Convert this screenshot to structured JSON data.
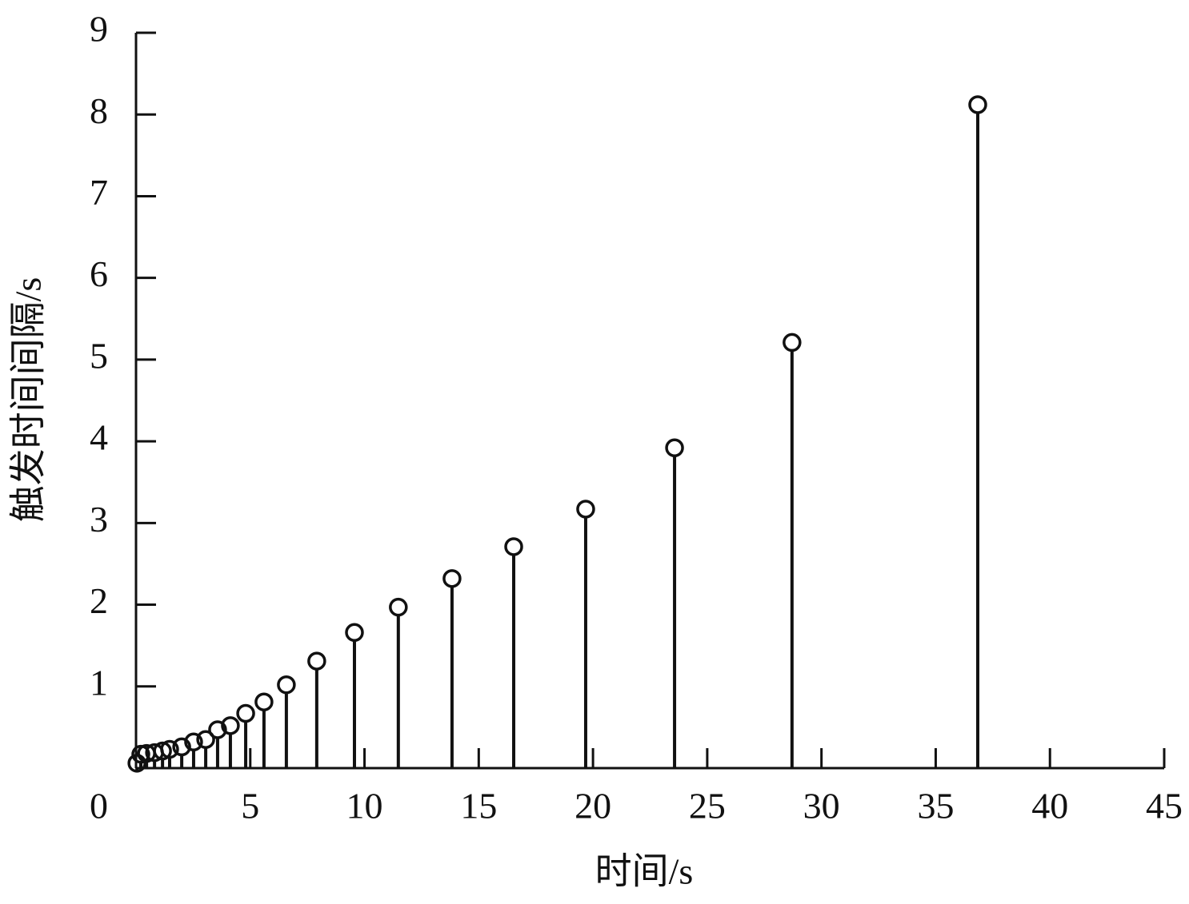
{
  "chart_data": {
    "type": "stem",
    "xlabel": "时间/s",
    "ylabel": "触发时间间隔/s",
    "x": [
      0.04,
      0.21,
      0.46,
      0.81,
      1.16,
      1.47,
      2.0,
      2.52,
      3.05,
      3.57,
      4.13,
      4.8,
      5.6,
      6.58,
      7.91,
      9.56,
      11.48,
      13.83,
      16.53,
      19.68,
      23.57,
      28.71,
      36.84
    ],
    "values": [
      0.06,
      0.17,
      0.18,
      0.19,
      0.21,
      0.23,
      0.26,
      0.32,
      0.35,
      0.47,
      0.52,
      0.67,
      0.81,
      1.02,
      1.31,
      1.66,
      1.97,
      2.32,
      2.71,
      3.17,
      3.92,
      5.21,
      8.12
    ],
    "color": "#111111",
    "xlim": [
      0,
      45
    ],
    "xticks": [
      0,
      5,
      10,
      15,
      20,
      25,
      30,
      35,
      40,
      45
    ],
    "ylim": [
      0,
      9
    ],
    "yticks": [
      1,
      2,
      3,
      4,
      5,
      6,
      7,
      8,
      9
    ]
  }
}
